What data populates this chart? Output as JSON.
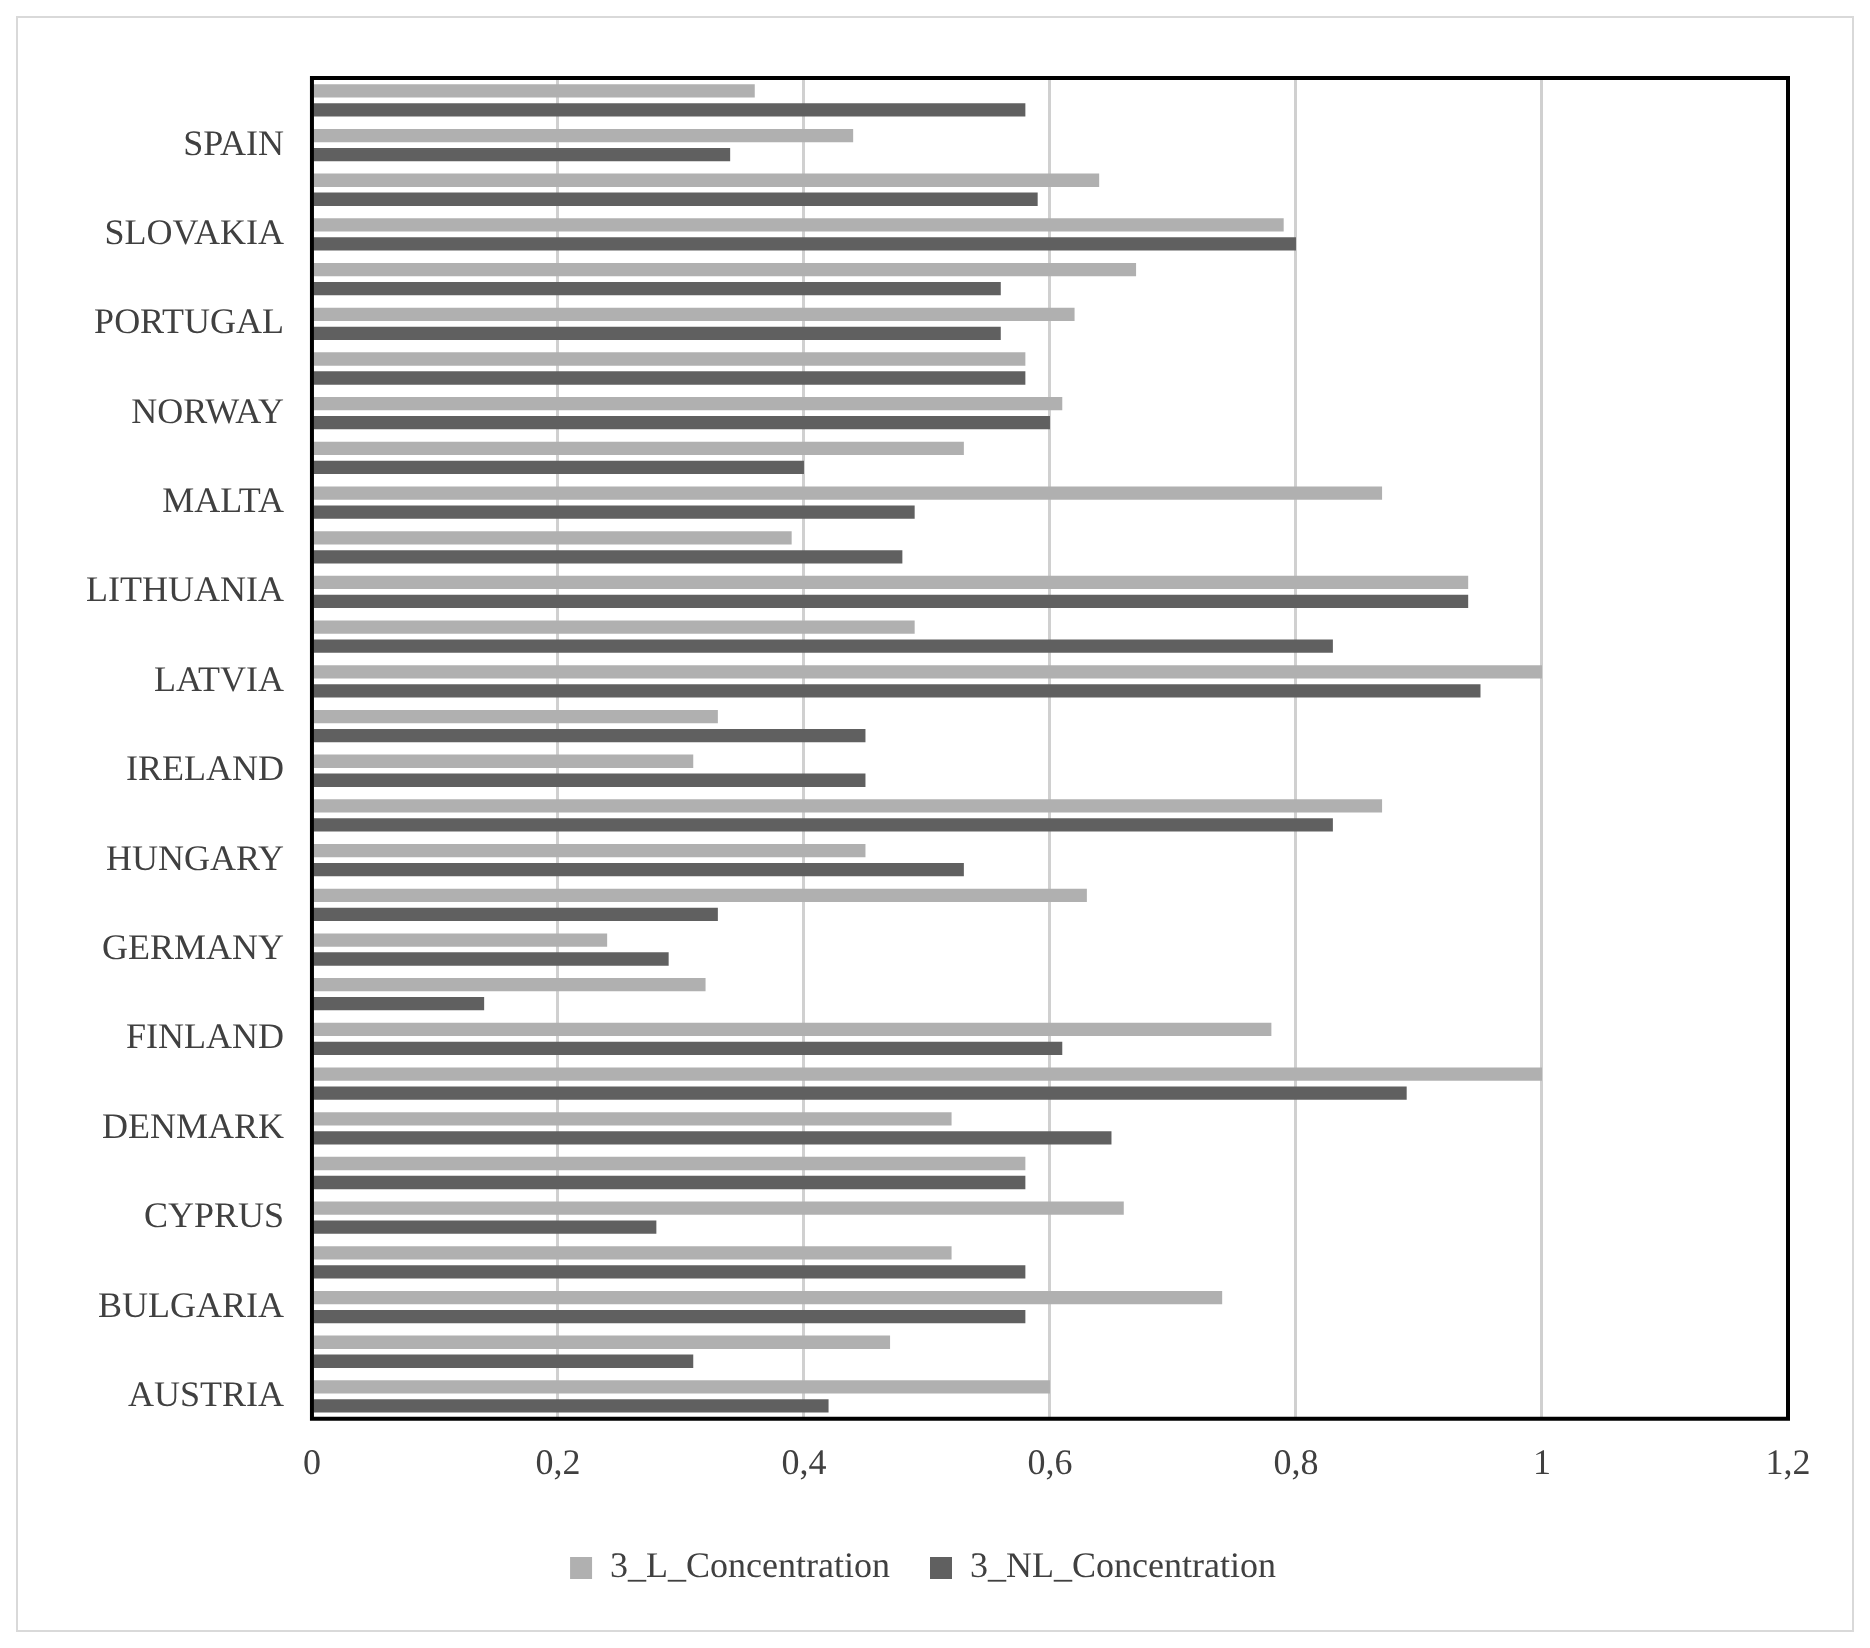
{
  "chart_data": {
    "type": "bar",
    "orientation": "horizontal",
    "categories": [
      null,
      "SPAIN",
      null,
      "SLOVAKIA",
      null,
      "PORTUGAL",
      null,
      "NORWAY",
      null,
      "MALTA",
      null,
      "LITHUANIA",
      null,
      "LATVIA",
      null,
      "IRELAND",
      null,
      "HUNGARY",
      null,
      "GERMANY",
      null,
      "FINLAND",
      null,
      "DENMARK",
      null,
      "CYPRUS",
      null,
      "BULGARIA",
      null,
      "AUSTRIA"
    ],
    "series": [
      {
        "name": "3_L_Concentration",
        "color": "#b0b0b0",
        "values": [
          0.36,
          0.44,
          0.64,
          0.79,
          0.67,
          0.62,
          0.58,
          0.61,
          0.53,
          0.87,
          0.39,
          0.94,
          0.49,
          1.0,
          0.33,
          0.31,
          0.87,
          0.45,
          0.63,
          0.24,
          0.32,
          0.78,
          1.0,
          0.52,
          0.58,
          0.66,
          0.52,
          0.74,
          0.47,
          0.6
        ]
      },
      {
        "name": "3_NL_Concentration",
        "color": "#606060",
        "values": [
          0.58,
          0.34,
          0.59,
          0.8,
          0.56,
          0.56,
          0.58,
          0.6,
          0.4,
          0.49,
          0.48,
          0.94,
          0.83,
          0.95,
          0.45,
          0.45,
          0.83,
          0.53,
          0.33,
          0.29,
          0.14,
          0.61,
          0.89,
          0.65,
          0.58,
          0.28,
          0.58,
          0.58,
          0.31,
          0.42
        ]
      }
    ],
    "xlim": [
      0,
      1.2
    ],
    "xticks": [
      0,
      {
        "value": 0.2,
        "label": "0,2"
      },
      {
        "value": 0.4,
        "label": "0,4"
      },
      {
        "value": 0.6,
        "label": "0,6"
      },
      {
        "value": 0.8,
        "label": "0,8"
      },
      1,
      {
        "value": 1.2,
        "label": "1,2"
      }
    ],
    "grid": "x",
    "legend": "bottom"
  }
}
